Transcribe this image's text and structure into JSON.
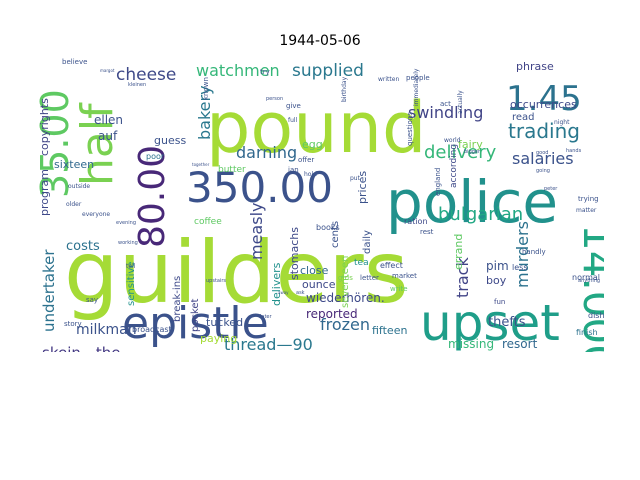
{
  "chart_data": {
    "type": "wordcloud",
    "title": "1944-05-06",
    "colormap": "viridis",
    "background": "#ffffff",
    "words": [
      {
        "text": "guilders",
        "color": "#a5db36"
      },
      {
        "text": "pound",
        "color": "#a5db36"
      },
      {
        "text": "police",
        "color": "#21918c"
      },
      {
        "text": "epistle",
        "color": "#3b528b"
      },
      {
        "text": "upset",
        "color": "#1f9e89"
      },
      {
        "text": "14.000",
        "color": "#22a884"
      },
      {
        "text": "half",
        "color": "#7ad151"
      },
      {
        "text": "35.00",
        "color": "#5ec962"
      },
      {
        "text": "350.00",
        "color": "#3b528b"
      },
      {
        "text": "1.45",
        "color": "#2c728e"
      },
      {
        "text": "80.00",
        "color": "#482878"
      },
      {
        "text": "murders",
        "color": "#2c728e"
      },
      {
        "text": "trading",
        "color": "#2a788e"
      },
      {
        "text": "delivery",
        "color": "#35b779"
      },
      {
        "text": "bulgarian",
        "color": "#22a884"
      },
      {
        "text": "supplied",
        "color": "#2a788e"
      },
      {
        "text": "watchmen",
        "color": "#35b779"
      },
      {
        "text": "cheese",
        "color": "#3e4989"
      },
      {
        "text": "swindling",
        "color": "#414487"
      },
      {
        "text": "darning",
        "color": "#31688e"
      },
      {
        "text": "bakery",
        "color": "#2a788e"
      },
      {
        "text": "measly",
        "color": "#3e4989"
      },
      {
        "text": "undertaker",
        "color": "#2c728e"
      },
      {
        "text": "skein—the",
        "color": "#443983"
      },
      {
        "text": "thread—90",
        "color": "#2a788e"
      },
      {
        "text": "frozen",
        "color": "#31688e"
      },
      {
        "text": "salaries",
        "color": "#3b528b"
      },
      {
        "text": "track",
        "color": "#414487"
      },
      {
        "text": "milkman",
        "color": "#3b528b"
      },
      {
        "text": "reported",
        "color": "#482878"
      },
      {
        "text": "wiederhören.",
        "color": "#3e4989"
      },
      {
        "text": "thefts",
        "color": "#3b528b"
      },
      {
        "text": "missing",
        "color": "#35b779"
      },
      {
        "text": "resort",
        "color": "#31688e"
      },
      {
        "text": "costs",
        "color": "#2c728e"
      },
      {
        "text": "ellen",
        "color": "#3b528b"
      },
      {
        "text": "auf",
        "color": "#3b528b"
      },
      {
        "text": "guess",
        "color": "#3b528b"
      },
      {
        "text": "sixteen",
        "color": "#31688e"
      },
      {
        "text": "copyrights",
        "color": "#414487"
      },
      {
        "text": "program",
        "color": "#3e4989"
      },
      {
        "text": "phrase",
        "color": "#414487"
      },
      {
        "text": "occurrences",
        "color": "#3e4989"
      },
      {
        "text": "fairy",
        "color": "#7ad151"
      },
      {
        "text": "errand",
        "color": "#5ec962"
      },
      {
        "text": "pim",
        "color": "#3b528b"
      },
      {
        "text": "boy",
        "color": "#3e4989"
      },
      {
        "text": "ounce",
        "color": "#3e4989"
      },
      {
        "text": "close",
        "color": "#31688e"
      },
      {
        "text": "prices",
        "color": "#3b528b"
      },
      {
        "text": "daily",
        "color": "#3b528b"
      },
      {
        "text": "egg",
        "color": "#5ec962"
      },
      {
        "text": "delivers",
        "color": "#21918c"
      },
      {
        "text": "stomachs",
        "color": "#3e4989"
      },
      {
        "text": "break-ins",
        "color": "#3e4989"
      },
      {
        "text": "pocket",
        "color": "#414487"
      },
      {
        "text": "sensitive",
        "color": "#21918c"
      },
      {
        "text": "tucked",
        "color": "#3b528b"
      },
      {
        "text": "paying",
        "color": "#a5db36"
      },
      {
        "text": "fifteen",
        "color": "#2c728e"
      },
      {
        "text": "seventeen",
        "color": "#7ad151"
      },
      {
        "text": "cents",
        "color": "#3b528b"
      },
      {
        "text": "read",
        "color": "#3b528b"
      },
      {
        "text": "according",
        "color": "#3e4989"
      },
      {
        "text": "coffee",
        "color": "#5ec962"
      },
      {
        "text": "broadcast",
        "color": "#3b528b"
      },
      {
        "text": "poor",
        "color": "#2c728e"
      },
      {
        "text": "butter",
        "color": "#5ec962"
      },
      {
        "text": "tea",
        "color": "#21918c"
      },
      {
        "text": "ration",
        "color": "#3e4989"
      },
      {
        "text": "books",
        "color": "#3b528b"
      },
      {
        "text": "less",
        "color": "#3b528b"
      },
      {
        "text": "normal",
        "color": "#3b528b"
      },
      {
        "text": "dishes",
        "color": "#3b528b"
      },
      {
        "text": "finish",
        "color": "#2c728e"
      },
      {
        "text": "handly",
        "color": "#3b528b"
      },
      {
        "text": "rest",
        "color": "#3b528b"
      },
      {
        "text": "effect",
        "color": "#3b528b"
      },
      {
        "text": "market",
        "color": "#3b528b"
      },
      {
        "text": "letter",
        "color": "#3b528b"
      },
      {
        "text": "girls",
        "color": "#7ad151"
      },
      {
        "text": "write",
        "color": "#5ec962"
      },
      {
        "text": "wants",
        "color": "#5ec962"
      },
      {
        "text": "fun",
        "color": "#3e4989"
      },
      {
        "text": "trying",
        "color": "#3b528b"
      },
      {
        "text": "matter",
        "color": "#3b528b"
      },
      {
        "text": "story",
        "color": "#3b528b"
      },
      {
        "text": "say",
        "color": "#3b528b"
      },
      {
        "text": "believe",
        "color": "#3b528b"
      },
      {
        "text": "written",
        "color": "#3b528b"
      },
      {
        "text": "people",
        "color": "#3b528b"
      },
      {
        "text": "known",
        "color": "#3b528b"
      },
      {
        "text": "questions",
        "color": "#3b528b"
      },
      {
        "text": "give",
        "color": "#3b528b"
      },
      {
        "text": "full",
        "color": "#3b528b"
      },
      {
        "text": "jan",
        "color": "#3b528b"
      },
      {
        "text": "offer",
        "color": "#3b528b"
      },
      {
        "text": "try",
        "color": "#3b528b"
      },
      {
        "text": "hold",
        "color": "#3b528b"
      },
      {
        "text": "put",
        "color": "#3b528b"
      },
      {
        "text": "act",
        "color": "#3b528b"
      },
      {
        "text": "birthday",
        "color": "#3b528b"
      },
      {
        "text": "england",
        "color": "#3b528b"
      },
      {
        "text": "actually",
        "color": "#3b528b"
      },
      {
        "text": "immediately",
        "color": "#3b528b"
      },
      {
        "text": "world",
        "color": "#3b528b"
      },
      {
        "text": "going",
        "color": "#3b528b"
      },
      {
        "text": "peter",
        "color": "#3b528b"
      },
      {
        "text": "night",
        "color": "#3b528b"
      },
      {
        "text": "everyone",
        "color": "#3b528b"
      },
      {
        "text": "older",
        "color": "#3b528b"
      },
      {
        "text": "outside",
        "color": "#3b528b"
      },
      {
        "text": "bigger",
        "color": "#3b528b"
      },
      {
        "text": "anything",
        "color": "#3b528b"
      },
      {
        "text": "later",
        "color": "#3b528b"
      },
      {
        "text": "ask",
        "color": "#3b528b"
      },
      {
        "text": "upstairs",
        "color": "#3b528b"
      },
      {
        "text": "working",
        "color": "#3b528b"
      },
      {
        "text": "evening",
        "color": "#3b528b"
      },
      {
        "text": "tell",
        "color": "#3b528b"
      },
      {
        "text": "kleinen",
        "color": "#3b528b"
      },
      {
        "text": "margot",
        "color": "#3b528b"
      },
      {
        "text": "together",
        "color": "#3b528b"
      },
      {
        "text": "away",
        "color": "#3b528b"
      },
      {
        "text": "hands",
        "color": "#3b528b"
      },
      {
        "text": "good",
        "color": "#3b528b"
      },
      {
        "text": "person",
        "color": "#3b528b"
      }
    ]
  }
}
